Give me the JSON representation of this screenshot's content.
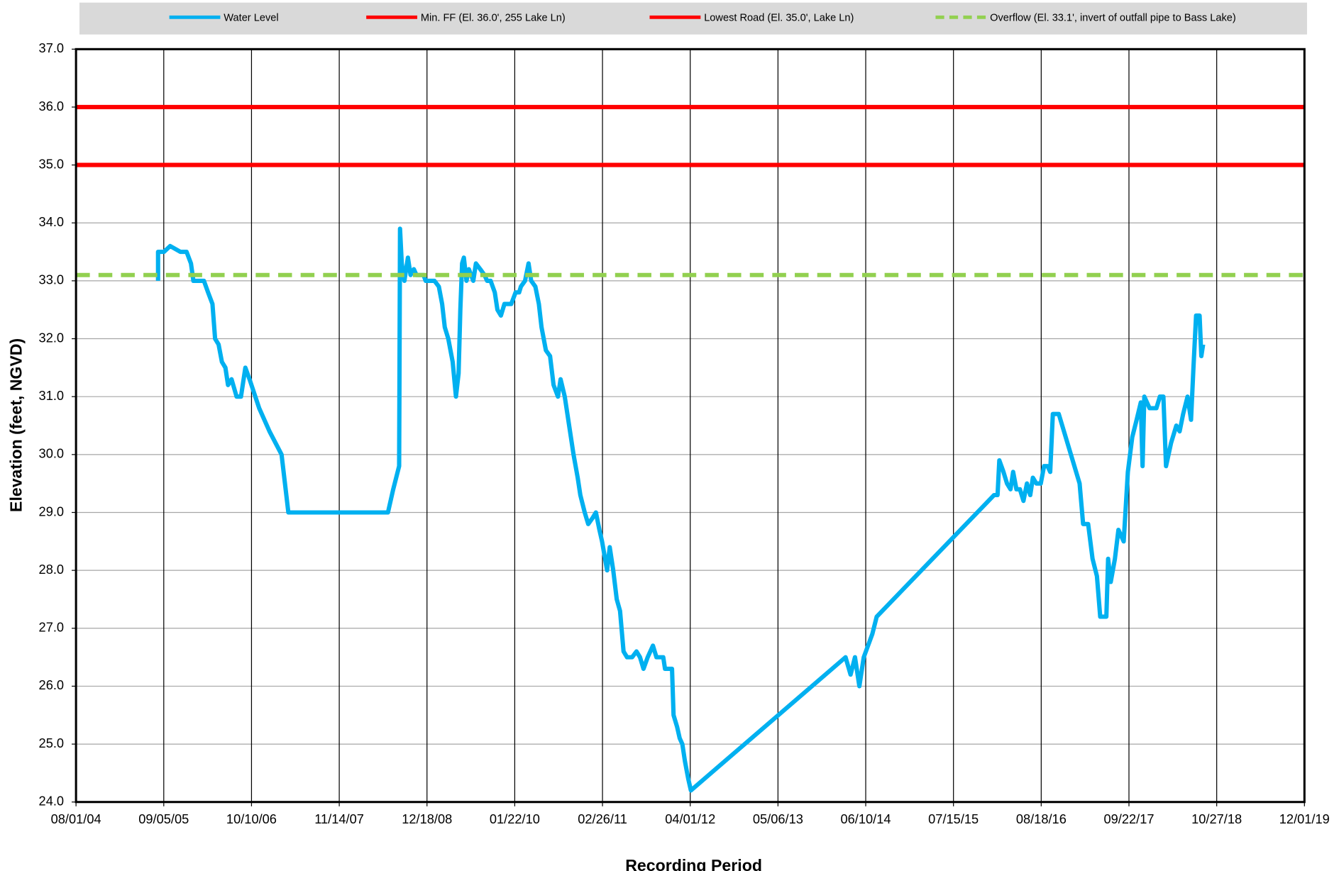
{
  "chart_data": {
    "type": "line",
    "x_label": "Recording Period",
    "y_label": "Elevation (feet, NGVD)",
    "xlim": [
      "2004-08-01",
      "2019-12-01"
    ],
    "xticks": [
      {
        "value": "2004-08-01",
        "label": "08/01/04"
      },
      {
        "value": "2005-09-05",
        "label": "09/05/05"
      },
      {
        "value": "2006-10-10",
        "label": "10/10/06"
      },
      {
        "value": "2007-11-14",
        "label": "11/14/07"
      },
      {
        "value": "2008-12-18",
        "label": "12/18/08"
      },
      {
        "value": "2010-01-22",
        "label": "01/22/10"
      },
      {
        "value": "2011-02-26",
        "label": "02/26/11"
      },
      {
        "value": "2012-04-01",
        "label": "04/01/12"
      },
      {
        "value": "2013-05-06",
        "label": "05/06/13"
      },
      {
        "value": "2014-06-10",
        "label": "06/10/14"
      },
      {
        "value": "2015-07-15",
        "label": "07/15/15"
      },
      {
        "value": "2016-08-18",
        "label": "08/18/16"
      },
      {
        "value": "2017-09-22",
        "label": "09/22/17"
      },
      {
        "value": "2018-10-27",
        "label": "10/27/18"
      },
      {
        "value": "2019-12-01",
        "label": "12/01/19"
      }
    ],
    "ylim": [
      24,
      37
    ],
    "yticks": [
      {
        "value": 24,
        "label": "24.0"
      },
      {
        "value": 25,
        "label": "25.0"
      },
      {
        "value": 26,
        "label": "26.0"
      },
      {
        "value": 27,
        "label": "27.0"
      },
      {
        "value": 28,
        "label": "28.0"
      },
      {
        "value": 29,
        "label": "29.0"
      },
      {
        "value": 30,
        "label": "30.0"
      },
      {
        "value": 31,
        "label": "31.0"
      },
      {
        "value": 32,
        "label": "32.0"
      },
      {
        "value": 33,
        "label": "33.0"
      },
      {
        "value": 34,
        "label": "34.0"
      },
      {
        "value": 35,
        "label": "35.0"
      },
      {
        "value": 36,
        "label": "36.0"
      },
      {
        "value": 37,
        "label": "37.0"
      }
    ],
    "grid": true,
    "legend": "top",
    "x": [
      "2005-08-10",
      "2005-08-10",
      "2005-09-06",
      "2005-10-04",
      "2005-11-20",
      "2005-12-18",
      "2006-01-07",
      "2006-01-18",
      "2006-03-07",
      "2006-03-26",
      "2006-04-15",
      "2006-04-27",
      "2006-05-13",
      "2006-05-28",
      "2006-06-13",
      "2006-06-25",
      "2006-07-11",
      "2006-08-03",
      "2006-08-23",
      "2006-09-12",
      "2006-10-01",
      "2006-11-14",
      "2006-12-31",
      "2007-02-24",
      "2007-03-27",
      "2008-06-23",
      "2008-07-17",
      "2008-08-13",
      "2008-08-17",
      "2008-08-25",
      "2008-09-06",
      "2008-09-22",
      "2008-10-04",
      "2008-10-19",
      "2008-10-31",
      "2008-12-02",
      "2008-12-12",
      "2009-01-21",
      "2009-02-10",
      "2009-02-25",
      "2009-03-09",
      "2009-03-25",
      "2009-04-14",
      "2009-04-29",
      "2009-05-11",
      "2009-05-19",
      "2009-05-27",
      "2009-06-04",
      "2009-06-16",
      "2009-06-27",
      "2009-07-17",
      "2009-07-29",
      "2009-08-18",
      "2009-09-06",
      "2009-09-18",
      "2009-10-04",
      "2009-10-23",
      "2009-11-04",
      "2009-11-20",
      "2009-12-06",
      "2010-01-06",
      "2010-01-26",
      "2010-02-11",
      "2010-02-19",
      "2010-03-10",
      "2010-03-26",
      "2010-04-07",
      "2010-04-26",
      "2010-05-12",
      "2010-05-24",
      "2010-06-13",
      "2010-07-02",
      "2010-07-18",
      "2010-08-07",
      "2010-08-19",
      "2010-09-07",
      "2010-09-19",
      "2010-10-05",
      "2010-10-17",
      "2010-11-05",
      "2010-11-17",
      "2010-12-07",
      "2010-12-23",
      "2011-01-11",
      "2011-01-27",
      "2011-02-12",
      "2011-02-24",
      "2011-03-19",
      "2011-03-31",
      "2011-04-16",
      "2011-05-02",
      "2011-05-17",
      "2011-06-02",
      "2011-06-18",
      "2011-07-11",
      "2011-07-31",
      "2011-08-16",
      "2011-09-01",
      "2011-09-20",
      "2011-10-14",
      "2011-10-30",
      "2011-11-30",
      "2011-12-08",
      "2012-01-09",
      "2012-01-16",
      "2012-02-01",
      "2012-02-13",
      "2012-02-25",
      "2012-03-08",
      "2012-03-23",
      "2012-04-04",
      "2014-03-10",
      "2014-04-02",
      "2014-04-22",
      "2014-05-12",
      "2014-06-01",
      "2014-07-10",
      "2014-07-30",
      "2016-01-16",
      "2016-02-01",
      "2016-02-09",
      "2016-02-28",
      "2016-03-15",
      "2016-03-31",
      "2016-04-12",
      "2016-04-27",
      "2016-05-13",
      "2016-05-29",
      "2016-06-14",
      "2016-06-29",
      "2016-07-11",
      "2016-07-27",
      "2016-08-16",
      "2016-08-31",
      "2016-09-16",
      "2016-09-28",
      "2016-10-10",
      "2016-11-06",
      "2017-02-09",
      "2017-02-25",
      "2017-03-20",
      "2017-04-09",
      "2017-04-29",
      "2017-05-14",
      "2017-06-11",
      "2017-06-19",
      "2017-07-01",
      "2017-07-20",
      "2017-08-05",
      "2017-08-29",
      "2017-09-17",
      "2017-10-07",
      "2017-10-27",
      "2017-11-15",
      "2017-11-23",
      "2017-12-01",
      "2017-12-25",
      "2018-01-25",
      "2018-02-10",
      "2018-02-26",
      "2018-03-10",
      "2018-04-02",
      "2018-04-26",
      "2018-05-11",
      "2018-05-27",
      "2018-06-16",
      "2018-07-02",
      "2018-07-13",
      "2018-07-25",
      "2018-08-10",
      "2018-08-18",
      "2018-08-26"
    ],
    "series": [
      {
        "name": "Water Level",
        "color": "#00b0f0",
        "values": [
          33.0,
          33.5,
          33.5,
          33.6,
          33.5,
          33.5,
          33.3,
          33.0,
          33.0,
          32.8,
          32.6,
          32.0,
          31.9,
          31.6,
          31.5,
          31.2,
          31.3,
          31.0,
          31.0,
          31.5,
          31.3,
          30.8,
          30.4,
          30.0,
          29.0,
          29.0,
          29.4,
          29.8,
          33.9,
          33.3,
          33.0,
          33.4,
          33.1,
          33.2,
          33.1,
          33.1,
          33.0,
          33.0,
          32.9,
          32.6,
          32.2,
          32.0,
          31.6,
          31.0,
          31.4,
          32.5,
          33.3,
          33.4,
          33.0,
          33.2,
          33.0,
          33.3,
          33.2,
          33.1,
          33.0,
          33.0,
          32.8,
          32.5,
          32.4,
          32.6,
          32.6,
          32.8,
          32.8,
          32.9,
          33.0,
          33.3,
          33.0,
          32.9,
          32.6,
          32.2,
          31.8,
          31.7,
          31.2,
          31.0,
          31.3,
          31.0,
          30.7,
          30.3,
          30.0,
          29.6,
          29.3,
          29.0,
          28.8,
          28.9,
          29.0,
          28.7,
          28.5,
          28.0,
          28.4,
          28.0,
          27.5,
          27.3,
          26.6,
          26.5,
          26.5,
          26.6,
          26.5,
          26.3,
          26.5,
          26.7,
          26.5,
          26.5,
          26.3,
          26.3,
          25.5,
          25.3,
          25.1,
          25.0,
          24.7,
          24.4,
          24.2,
          26.5,
          26.2,
          26.5,
          26.0,
          26.5,
          26.9,
          27.2,
          29.3,
          29.3,
          29.9,
          29.7,
          29.5,
          29.4,
          29.7,
          29.4,
          29.4,
          29.2,
          29.5,
          29.3,
          29.6,
          29.5,
          29.5,
          29.8,
          29.8,
          29.7,
          30.7,
          30.7,
          29.5,
          28.8,
          28.8,
          28.2,
          27.9,
          27.2,
          27.2,
          28.2,
          27.8,
          28.2,
          28.7,
          28.5,
          29.7,
          30.3,
          30.6,
          30.9,
          29.8,
          31.0,
          30.8,
          30.8,
          31.0,
          31.0,
          29.8,
          30.2,
          30.5,
          30.4,
          30.7,
          31.0,
          30.6,
          31.5,
          32.4,
          32.4,
          31.7,
          31.9
        ]
      }
    ],
    "reference_lines": [
      {
        "name": "Min. FF (El. 36.0', 255 Lake Ln)",
        "value": 36.0,
        "color": "#ff0000",
        "dashed": false
      },
      {
        "name": "Lowest Road (El. 35.0', Lake Ln)",
        "value": 35.0,
        "color": "#ff0000",
        "dashed": false
      },
      {
        "name": "Overflow (El. 33.1', invert of outfall pipe to Bass Lake)",
        "value": 33.1,
        "color": "#92d050",
        "dashed": true
      }
    ]
  }
}
